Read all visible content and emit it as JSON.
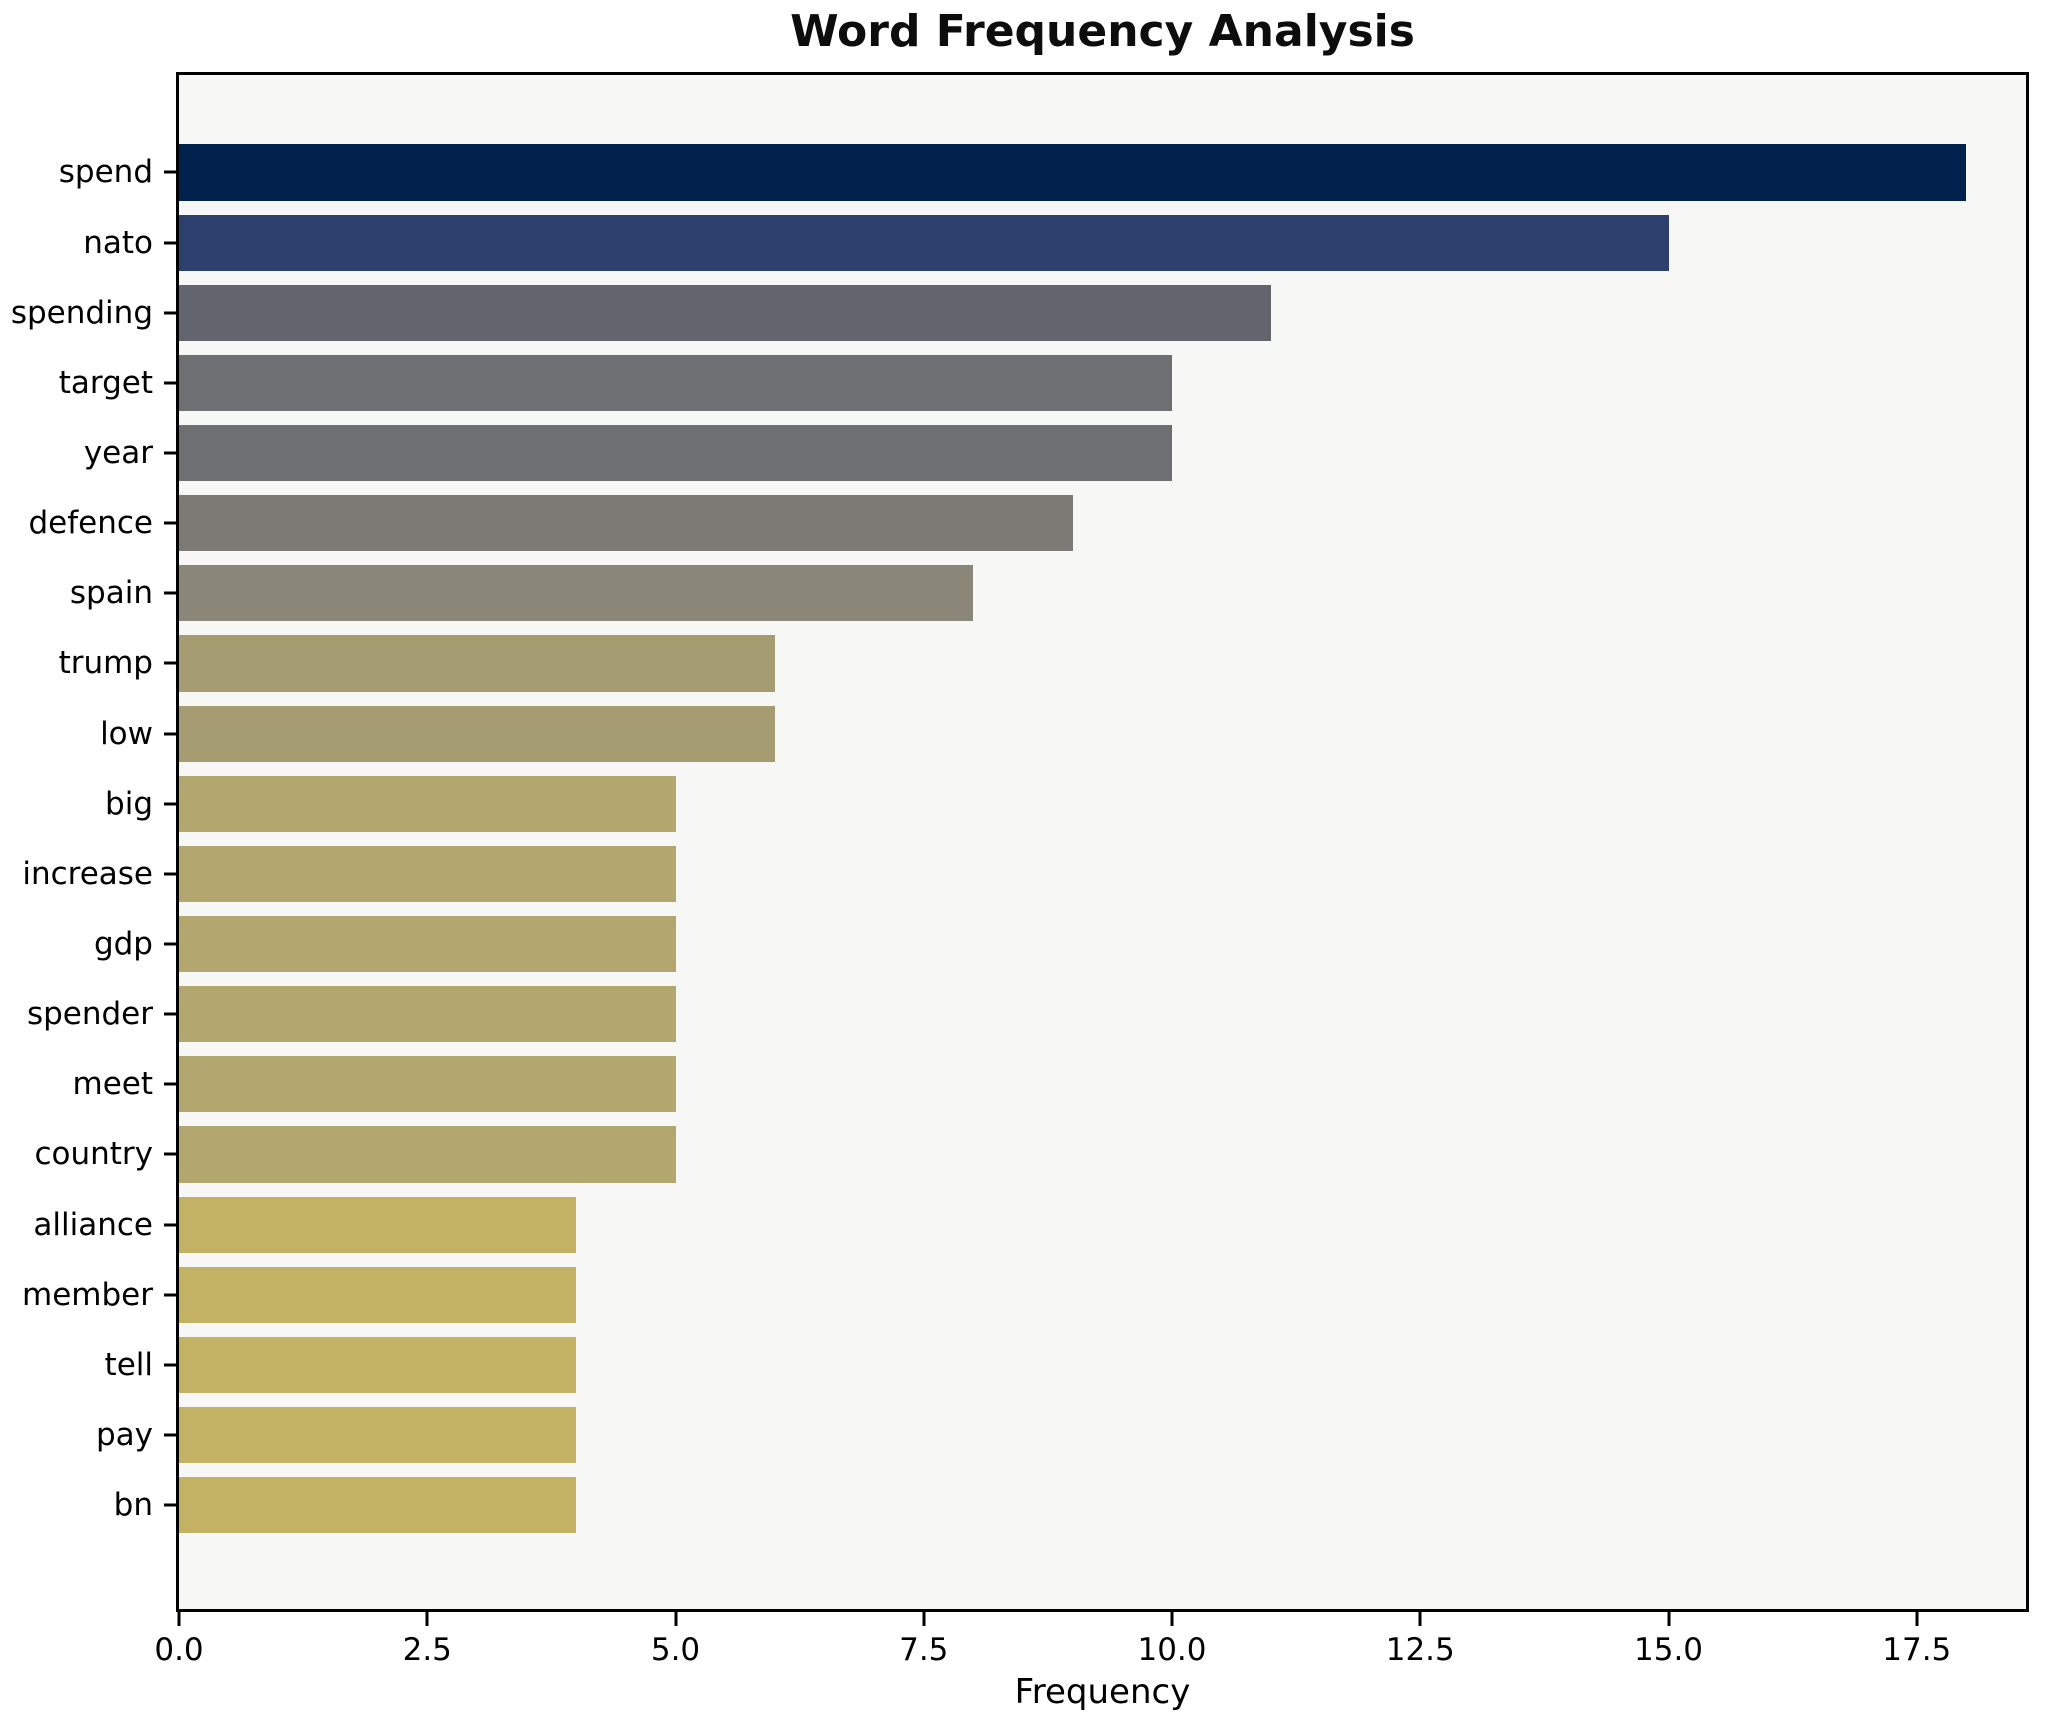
{
  "title": "Word Frequency Analysis",
  "chart_data": {
    "type": "bar",
    "orientation": "horizontal",
    "title": "Word Frequency Analysis",
    "xlabel": "Frequency",
    "ylabel": "",
    "categories": [
      "spend",
      "nato",
      "spending",
      "target",
      "year",
      "defence",
      "spain",
      "trump",
      "low",
      "big",
      "increase",
      "gdp",
      "spender",
      "meet",
      "country",
      "alliance",
      "member",
      "tell",
      "pay",
      "bn"
    ],
    "values": [
      18,
      15,
      11,
      10,
      10,
      9,
      8,
      6,
      6,
      5,
      5,
      5,
      5,
      5,
      5,
      4,
      4,
      4,
      4,
      4
    ],
    "bar_colors": [
      "#02224e",
      "#2d3f6d",
      "#62656e",
      "#6e6f72",
      "#6e6f72",
      "#7b7a75",
      "#8a8779",
      "#a59c72",
      "#a59c72",
      "#b2a76e",
      "#b2a76e",
      "#b2a76e",
      "#b2a76e",
      "#b2a76e",
      "#b2a76e",
      "#c3b164",
      "#c3b164",
      "#c3b164",
      "#c3b164",
      "#c3b164"
    ],
    "xlim": [
      0,
      18.6
    ],
    "xticks": [
      0.0,
      2.5,
      5.0,
      7.5,
      10.0,
      12.5,
      15.0,
      17.5
    ],
    "xtick_labels": [
      "0.0",
      "2.5",
      "5.0",
      "7.5",
      "10.0",
      "12.5",
      "15.0",
      "17.5"
    ],
    "grid": false,
    "legend": null,
    "plot_background": "#f7f7f5",
    "figure_background": "#ffffff",
    "axis_border_color": "#000000"
  }
}
